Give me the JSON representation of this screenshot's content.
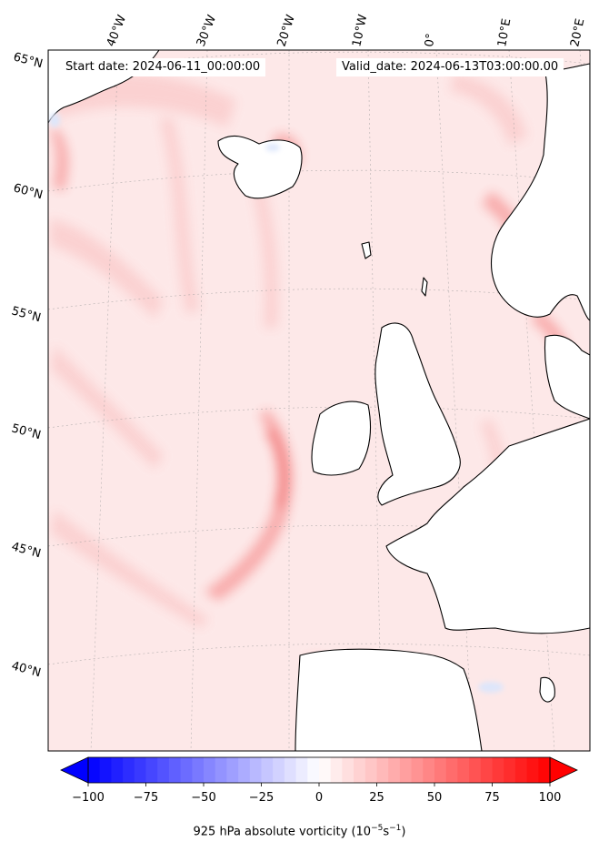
{
  "header": {
    "start_date": "Start date: 2024-06-11_00:00:00",
    "valid_date": "Valid_date: 2024-06-13T03:00:00.00"
  },
  "map": {
    "field": "925 hPa absolute vorticity",
    "lon_labels": [
      "40°W",
      "30°W",
      "20°W",
      "10°W",
      "0°",
      "10°E",
      "20°E"
    ],
    "lat_labels": [
      "65°N",
      "60°N",
      "55°N",
      "50°N",
      "45°N",
      "40°N"
    ],
    "colors": {
      "background": "#fde8e8",
      "weak": "#fbd0d0",
      "moderate": "#f8a9a9",
      "strong": "#f37c7c",
      "land": "#ffffff",
      "negative": "#dde6fb"
    }
  },
  "colorbar": {
    "ticks": [
      "−100",
      "−75",
      "−50",
      "−25",
      "0",
      "25",
      "50",
      "75",
      "100"
    ],
    "min": -100,
    "max": 100,
    "step": 5,
    "cmap": "bwr",
    "extend": "both",
    "title_main": "925 hPa absolute vorticity (10",
    "title_exp1": "−5",
    "title_mid": "s",
    "title_exp2": "−1",
    "title_end": ")"
  }
}
